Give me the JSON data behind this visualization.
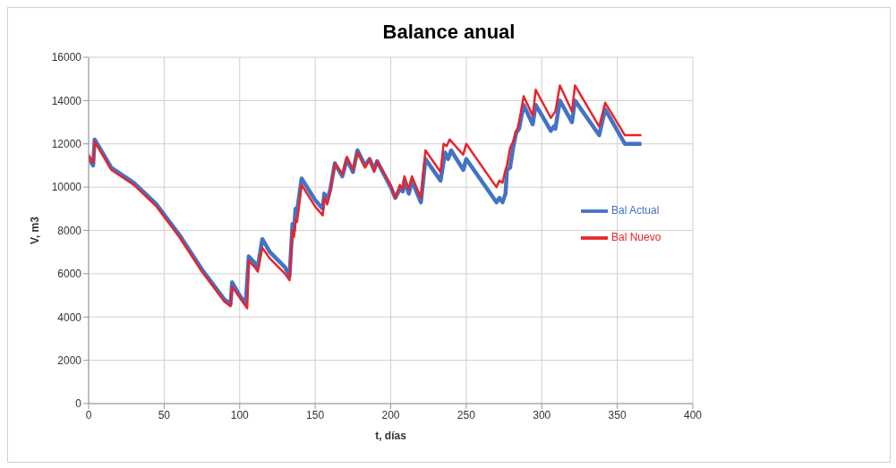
{
  "chart_data": {
    "type": "line",
    "title": "Balance anual",
    "xlabel": "t, días",
    "ylabel": "V, m3",
    "xlim": [
      0,
      400
    ],
    "xticks": [
      0,
      50,
      100,
      150,
      200,
      250,
      300,
      350,
      400
    ],
    "ylim": [
      0,
      16000
    ],
    "yticks": [
      0,
      2000,
      4000,
      6000,
      8000,
      10000,
      12000,
      14000,
      16000
    ],
    "grid": true,
    "legend": "right",
    "marker": "none",
    "line_style": "solid",
    "series": [
      {
        "name": "Bal Actual",
        "color": "#4472c4",
        "x": [
          0,
          2,
          3,
          4,
          10,
          15,
          30,
          45,
          60,
          75,
          90,
          94,
          95,
          100,
          104,
          106,
          110,
          112,
          115,
          120,
          130,
          133,
          135,
          136,
          137,
          138,
          141,
          150,
          155,
          156,
          158,
          160,
          163,
          168,
          171,
          175,
          178,
          183,
          186,
          189,
          191,
          200,
          203,
          206,
          208,
          209,
          212,
          214,
          220,
          223,
          233,
          236,
          238,
          240,
          248,
          250,
          270,
          272,
          274,
          276,
          277,
          279,
          281,
          283,
          285,
          288,
          294,
          296,
          306,
          308,
          309,
          312,
          320,
          322,
          338,
          342,
          355,
          366
        ],
        "values": [
          11400,
          11100,
          11000,
          12200,
          11500,
          10900,
          10200,
          9200,
          7800,
          6200,
          4800,
          4600,
          5600,
          5000,
          4600,
          6800,
          6500,
          6300,
          7600,
          7000,
          6300,
          5900,
          8300,
          8000,
          9000,
          8900,
          10400,
          9400,
          9000,
          9700,
          9400,
          9900,
          11100,
          10500,
          11300,
          10700,
          11700,
          11000,
          11300,
          10800,
          11200,
          10000,
          9500,
          9900,
          9800,
          10300,
          9700,
          10300,
          9300,
          11300,
          10300,
          11600,
          11300,
          11700,
          10800,
          11300,
          9300,
          9500,
          9300,
          9700,
          10800,
          10900,
          11800,
          12500,
          12700,
          13800,
          12900,
          13800,
          12600,
          12800,
          12700,
          14000,
          13000,
          14000,
          12400,
          13600,
          12000,
          12000
        ]
      },
      {
        "name": "Bal Nuevo",
        "color": "#e8242b",
        "x": [
          0,
          2,
          3,
          4,
          10,
          15,
          30,
          45,
          60,
          75,
          90,
          94,
          95,
          100,
          105,
          106,
          110,
          112,
          115,
          120,
          130,
          133,
          135,
          136,
          137,
          138,
          141,
          150,
          155,
          156,
          158,
          160,
          163,
          168,
          171,
          175,
          178,
          183,
          186,
          189,
          191,
          200,
          203,
          206,
          208,
          209,
          212,
          214,
          220,
          223,
          233,
          235,
          237,
          239,
          248,
          250,
          270,
          272,
          274,
          276,
          277,
          279,
          281,
          283,
          284,
          286,
          288,
          294,
          296,
          306,
          308,
          309,
          312,
          320,
          322,
          338,
          342,
          355,
          366
        ],
        "values": [
          11500,
          11200,
          11100,
          12100,
          11400,
          10800,
          10100,
          9100,
          7700,
          6100,
          4700,
          4500,
          5400,
          4900,
          4400,
          6600,
          6300,
          6100,
          7200,
          6700,
          6000,
          5700,
          8000,
          7700,
          8500,
          8400,
          10100,
          9100,
          8700,
          9500,
          9200,
          9800,
          11100,
          10600,
          11400,
          10800,
          11600,
          10900,
          11300,
          10700,
          11200,
          10100,
          9500,
          10100,
          9900,
          10500,
          9900,
          10500,
          9500,
          11700,
          10700,
          12000,
          11900,
          12200,
          11500,
          12000,
          10000,
          10300,
          10200,
          10800,
          11000,
          11800,
          12100,
          12600,
          12700,
          13400,
          14200,
          13300,
          14500,
          13200,
          13400,
          13500,
          14700,
          13500,
          14700,
          12800,
          13900,
          12400,
          12400
        ]
      }
    ]
  }
}
